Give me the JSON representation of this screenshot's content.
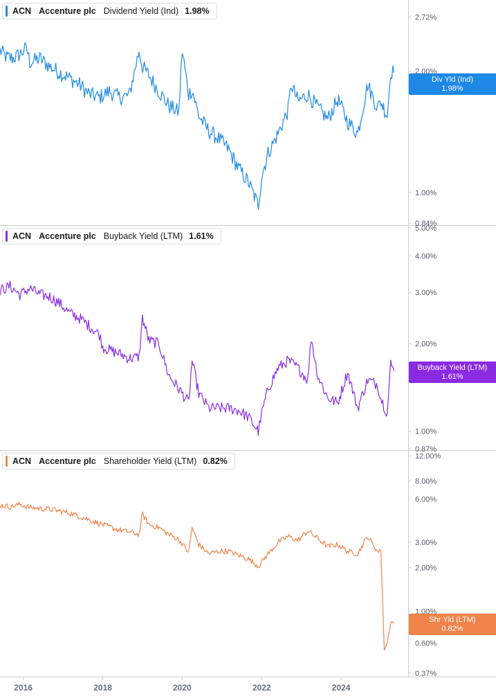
{
  "panels": [
    {
      "ticker": "ACN",
      "company": "Accenture plc",
      "metric": "Dividend Yield (Ind)",
      "current_value": "1.98%",
      "tag_label": "Div Yld (Ind)",
      "tag_value": "1.98%"
    },
    {
      "ticker": "ACN",
      "company": "Accenture plc",
      "metric": "Buyback Yield (LTM)",
      "current_value": "1.61%",
      "tag_label": "Buyback Yield (LTM)",
      "tag_value": "1.61%"
    },
    {
      "ticker": "ACN",
      "company": "Accenture plc",
      "metric": "Shareholder Yield (LTM)",
      "current_value": "0.82%",
      "tag_label": "Shr Yld (LTM)",
      "tag_value": "0.82%"
    }
  ],
  "chart_data": [
    {
      "type": "line",
      "title": "ACN Accenture plc Dividend Yield (Ind) 1.98%",
      "series": [
        {
          "name": "Dividend Yield (Ind)",
          "color": "#1e88e5",
          "x": [
            "2015-06",
            "2015-08",
            "2015-10",
            "2015-12",
            "2016-02",
            "2016-03",
            "2016-06",
            "2016-09",
            "2016-12",
            "2017-03",
            "2017-06",
            "2017-09",
            "2017-12",
            "2018-03",
            "2018-06",
            "2018-09",
            "2018-12",
            "2019-01",
            "2019-03",
            "2019-06",
            "2019-09",
            "2019-12",
            "2020-01",
            "2020-03",
            "2020-04",
            "2020-06",
            "2020-09",
            "2020-12",
            "2021-03",
            "2021-06",
            "2021-09",
            "2021-12",
            "2022-01",
            "2022-03",
            "2022-06",
            "2022-09",
            "2022-10",
            "2022-12",
            "2023-03",
            "2023-06",
            "2023-09",
            "2023-12",
            "2024-03",
            "2024-06",
            "2024-09",
            "2024-12",
            "2025-01",
            "2025-03",
            "2025-04",
            "2025-05"
          ],
          "values": [
            2.25,
            2.16,
            2.15,
            2.2,
            2.28,
            2.1,
            2.15,
            2.05,
            1.98,
            1.92,
            1.85,
            1.75,
            1.72,
            1.78,
            1.72,
            1.74,
            2.25,
            2.05,
            1.95,
            1.78,
            1.64,
            1.58,
            2.25,
            1.75,
            1.8,
            1.55,
            1.42,
            1.36,
            1.28,
            1.15,
            1.06,
            0.93,
            1.1,
            1.25,
            1.4,
            1.6,
            1.85,
            1.68,
            1.75,
            1.62,
            1.52,
            1.7,
            1.5,
            1.4,
            1.85,
            1.62,
            1.68,
            1.55,
            2.0,
            1.98
          ]
        }
      ],
      "yticks": [
        "0.84%",
        "1.00%",
        "2.00%",
        "2.72%"
      ],
      "ylim": [
        0.84,
        2.95
      ],
      "yscale": "log"
    },
    {
      "type": "line",
      "title": "ACN Accenture plc Buyback Yield (LTM) 1.61%",
      "series": [
        {
          "name": "Buyback Yield (LTM)",
          "color": "#8a2be2",
          "x": [
            "2015-06",
            "2015-09",
            "2015-12",
            "2016-03",
            "2016-06",
            "2016-09",
            "2016-12",
            "2017-03",
            "2017-06",
            "2017-09",
            "2017-12",
            "2018-01",
            "2018-03",
            "2018-06",
            "2018-09",
            "2018-12",
            "2019-01",
            "2019-03",
            "2019-06",
            "2019-09",
            "2019-12",
            "2020-03",
            "2020-04",
            "2020-06",
            "2020-09",
            "2020-12",
            "2021-03",
            "2021-06",
            "2021-09",
            "2021-12",
            "2022-01",
            "2022-03",
            "2022-06",
            "2022-09",
            "2022-12",
            "2023-03",
            "2023-04",
            "2023-06",
            "2023-09",
            "2023-12",
            "2024-03",
            "2024-06",
            "2024-09",
            "2024-12",
            "2025-01",
            "2025-03",
            "2025-04",
            "2025-05"
          ],
          "values": [
            3.05,
            3.15,
            2.95,
            3.1,
            2.95,
            2.9,
            2.75,
            2.55,
            2.45,
            2.3,
            2.15,
            1.95,
            1.9,
            1.85,
            1.78,
            1.8,
            2.45,
            2.05,
            2.0,
            1.55,
            1.4,
            1.25,
            1.75,
            1.35,
            1.2,
            1.2,
            1.2,
            1.18,
            1.12,
            1.0,
            1.15,
            1.4,
            1.65,
            1.75,
            1.65,
            1.5,
            2.1,
            1.55,
            1.3,
            1.25,
            1.6,
            1.2,
            1.5,
            1.45,
            1.3,
            1.15,
            1.7,
            1.61
          ]
        }
      ],
      "yticks": [
        "0.87%",
        "1.00%",
        "2.00%",
        "3.00%",
        "4.00%",
        "5.00%"
      ],
      "ylim": [
        0.87,
        5.0
      ],
      "yscale": "log"
    },
    {
      "type": "line",
      "title": "ACN Accenture plc Shareholder Yield (LTM) 0.82%",
      "series": [
        {
          "name": "Shareholder Yield (LTM)",
          "color": "#f0834a",
          "x": [
            "2015-06",
            "2015-09",
            "2015-12",
            "2016-03",
            "2016-06",
            "2016-09",
            "2016-12",
            "2017-03",
            "2017-06",
            "2017-09",
            "2017-12",
            "2018-03",
            "2018-06",
            "2018-09",
            "2018-12",
            "2019-01",
            "2019-03",
            "2019-06",
            "2019-09",
            "2019-12",
            "2020-03",
            "2020-04",
            "2020-06",
            "2020-09",
            "2020-12",
            "2021-03",
            "2021-06",
            "2021-09",
            "2021-12",
            "2022-03",
            "2022-06",
            "2022-09",
            "2022-12",
            "2023-03",
            "2023-06",
            "2023-09",
            "2023-12",
            "2024-03",
            "2024-06",
            "2024-09",
            "2024-12",
            "2025-01",
            "2025-02",
            "2025-03",
            "2025-04",
            "2025-05"
          ],
          "values": [
            5.45,
            5.3,
            5.5,
            5.25,
            5.15,
            5.1,
            4.95,
            4.8,
            4.55,
            4.3,
            4.05,
            3.85,
            3.65,
            3.55,
            3.4,
            4.7,
            4.0,
            3.8,
            3.4,
            3.15,
            2.55,
            3.8,
            2.9,
            2.5,
            2.6,
            2.6,
            2.45,
            2.3,
            2.05,
            2.5,
            3.0,
            3.3,
            3.1,
            3.6,
            3.2,
            2.8,
            2.9,
            2.6,
            2.5,
            3.3,
            2.6,
            2.58,
            0.55,
            0.6,
            0.85,
            0.82
          ]
        }
      ],
      "yticks": [
        "0.37%",
        "0.60%",
        "1.00%",
        "2.00%",
        "3.00%",
        "6.00%",
        "8.00%",
        "12.00%"
      ],
      "ylim": [
        0.37,
        12.0
      ],
      "yscale": "log"
    }
  ],
  "x_axis": {
    "ticks": [
      "2016",
      "2018",
      "2020",
      "2022",
      "2024"
    ]
  }
}
